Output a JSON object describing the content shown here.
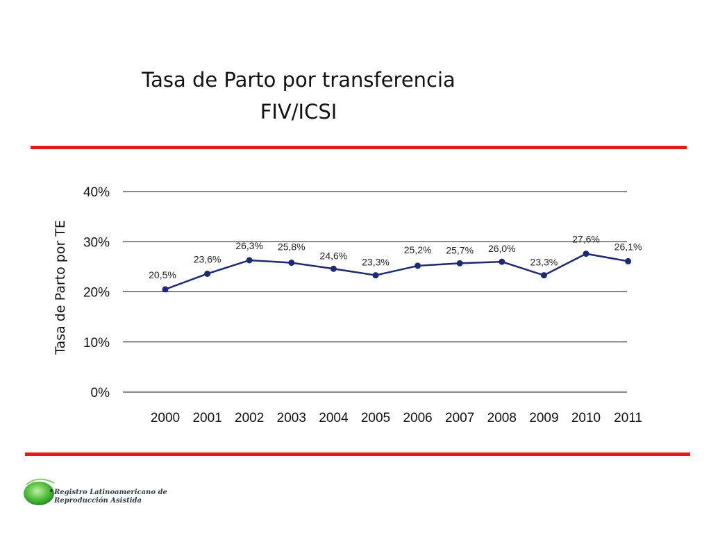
{
  "title_lines": [
    "Tasa de Parto por transferencia",
    "FIV/ICSI"
  ],
  "rule_color": "#e21b1b",
  "line_color": "#1f2a6e",
  "chart_data": {
    "type": "line",
    "title": "Tasa de Parto por transferencia FIV/ICSI",
    "xlabel": "",
    "ylabel": "Tasa de Parto por TE",
    "categories": [
      "2000",
      "2001",
      "2002",
      "2003",
      "2004",
      "2005",
      "2006",
      "2007",
      "2008",
      "2009",
      "2010",
      "2011"
    ],
    "values": [
      20.5,
      23.6,
      26.3,
      25.8,
      24.6,
      23.3,
      25.2,
      25.7,
      26.0,
      23.3,
      27.6,
      26.1
    ],
    "data_labels": [
      "20,5%",
      "23,6%",
      "26,3%",
      "25,8%",
      "24,6%",
      "23,3%",
      "25,2%",
      "25,7%",
      "26,0%",
      "23,3%",
      "27,6%",
      "26,1%"
    ],
    "ylim": [
      0,
      40
    ],
    "yticks": [
      0,
      10,
      20,
      30,
      40
    ],
    "ytick_labels": [
      "0%",
      "10%",
      "20%",
      "30%",
      "40%"
    ],
    "grid": true
  },
  "logo": {
    "line1": "Registro Latinoamericano de",
    "line2": "Reproducción Asistida",
    "icon": "green-circle-logo-icon"
  }
}
